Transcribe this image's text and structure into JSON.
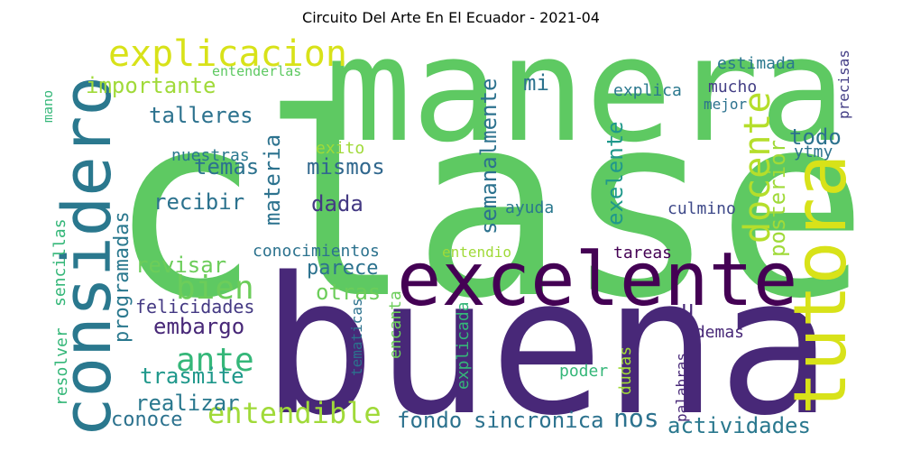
{
  "title": "Circuito Del Arte En El Ecuador - 2021-04",
  "words": [
    {
      "text": "clase",
      "color": "#5ec962"
    },
    {
      "text": "manera",
      "color": "#5ec962"
    },
    {
      "text": "buena",
      "color": "#482878"
    },
    {
      "text": "excelente",
      "color": "#440154"
    },
    {
      "text": "considero",
      "color": "#2a788e"
    },
    {
      "text": "tutora",
      "color": "#d8e219"
    },
    {
      "text": "explicacion",
      "color": "#d8e219"
    },
    {
      "text": "entendible",
      "color": "#a0da39"
    },
    {
      "text": "docente",
      "color": "#b5de2b"
    },
    {
      "text": "importante",
      "color": "#a0da39"
    },
    {
      "text": "talleres",
      "color": "#2c728e"
    },
    {
      "text": "mismos",
      "color": "#31688e"
    },
    {
      "text": "temas",
      "color": "#2c728e"
    },
    {
      "text": "recibir",
      "color": "#2c728e"
    },
    {
      "text": "materia",
      "color": "#2c728e"
    },
    {
      "text": "dada",
      "color": "#443983"
    },
    {
      "text": "mi",
      "color": "#2c728e"
    },
    {
      "text": "semanalmente",
      "color": "#2c728e"
    },
    {
      "text": "exelente",
      "color": "#1f988b"
    },
    {
      "text": "posterior",
      "color": "#a0da39"
    },
    {
      "text": "todo",
      "color": "#2c728e"
    },
    {
      "text": "ytmy",
      "color": "#2c728e"
    },
    {
      "text": "estimada",
      "color": "#2a788e"
    },
    {
      "text": "mucho",
      "color": "#433e85"
    },
    {
      "text": "mejor",
      "color": "#2c728e"
    },
    {
      "text": "precisas",
      "color": "#433e85"
    },
    {
      "text": "explica",
      "color": "#2a788e"
    },
    {
      "text": "entenderlas",
      "color": "#5ec962"
    },
    {
      "text": "mano",
      "color": "#35b779"
    },
    {
      "text": "exito",
      "color": "#a0da39"
    },
    {
      "text": "nuestras",
      "color": "#2a788e"
    },
    {
      "text": "ayuda",
      "color": "#2a788e"
    },
    {
      "text": "culmino",
      "color": "#3e4989"
    },
    {
      "text": "conocimientos",
      "color": "#2c728e"
    },
    {
      "text": "entendio",
      "color": "#a0da39"
    },
    {
      "text": "tareas",
      "color": "#440154"
    },
    {
      "text": "revisar",
      "color": "#6ccd5a"
    },
    {
      "text": "parece",
      "color": "#2c728e"
    },
    {
      "text": "bien",
      "color": "#6ccd5a"
    },
    {
      "text": "otras",
      "color": "#6ccd5a"
    },
    {
      "text": "u",
      "color": "#482878"
    },
    {
      "text": "programadas",
      "color": "#2a788e"
    },
    {
      "text": "felicidades",
      "color": "#443983"
    },
    {
      "text": "embargo",
      "color": "#482878"
    },
    {
      "text": "ante",
      "color": "#35b779"
    },
    {
      "text": "trasmite",
      "color": "#1f988b"
    },
    {
      "text": "realizar",
      "color": "#2a788e"
    },
    {
      "text": "conoce",
      "color": "#2c728e"
    },
    {
      "text": "sencillas",
      "color": "#35b779"
    },
    {
      "text": "resolver",
      "color": "#35b779"
    },
    {
      "text": "tematicas",
      "color": "#2c728e"
    },
    {
      "text": "encanta",
      "color": "#6ccd5a"
    },
    {
      "text": "explicada",
      "color": "#35b779"
    },
    {
      "text": "ademas",
      "color": "#482878"
    },
    {
      "text": "poder",
      "color": "#35b779"
    },
    {
      "text": "dudas",
      "color": "#a0da39"
    },
    {
      "text": "palabras",
      "color": "#482878"
    },
    {
      "text": "fondo",
      "color": "#2c728e"
    },
    {
      "text": "sincronica",
      "color": "#2c728e"
    },
    {
      "text": "nos",
      "color": "#2c728e"
    },
    {
      "text": "actividades",
      "color": "#2a788e"
    }
  ]
}
